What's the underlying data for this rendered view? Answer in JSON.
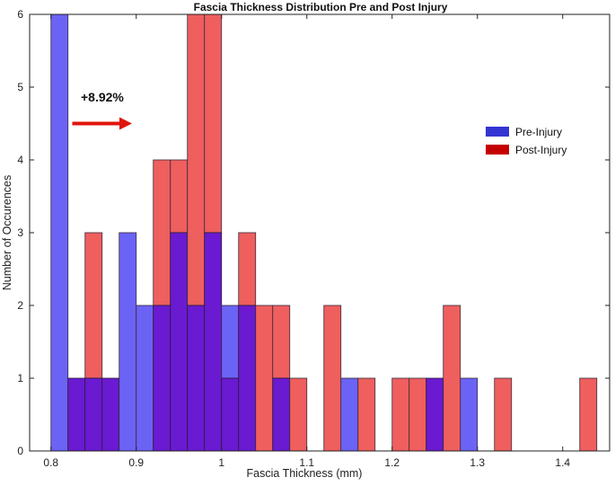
{
  "chart_data": {
    "type": "bar",
    "title": "Fascia Thickness Distribution Pre and Post Injury",
    "xlabel": "Fascia Thickness (mm)",
    "ylabel": "Number of Occurences",
    "xlim": [
      0.775,
      1.455
    ],
    "ylim": [
      0,
      6
    ],
    "xticks": [
      0.8,
      0.9,
      1,
      1.1,
      1.2,
      1.3,
      1.4
    ],
    "xtick_labels": [
      "0.8",
      "0.9",
      "1",
      "1.1",
      "1.2",
      "1.3",
      "1.4"
    ],
    "yticks": [
      0,
      1,
      2,
      3,
      4,
      5,
      6
    ],
    "bin_width": 0.02,
    "series": [
      {
        "name": "Pre-Injury",
        "color": "#6b63f5",
        "bins": [
          {
            "x0": 0.8,
            "count": 6
          },
          {
            "x0": 0.82,
            "count": 1
          },
          {
            "x0": 0.84,
            "count": 1
          },
          {
            "x0": 0.86,
            "count": 1
          },
          {
            "x0": 0.88,
            "count": 3
          },
          {
            "x0": 0.9,
            "count": 2
          },
          {
            "x0": 0.92,
            "count": 2
          },
          {
            "x0": 0.94,
            "count": 3
          },
          {
            "x0": 0.96,
            "count": 2
          },
          {
            "x0": 0.98,
            "count": 3
          },
          {
            "x0": 1.0,
            "count": 2
          },
          {
            "x0": 1.02,
            "count": 2
          },
          {
            "x0": 1.06,
            "count": 1
          },
          {
            "x0": 1.14,
            "count": 1
          },
          {
            "x0": 1.24,
            "count": 1
          },
          {
            "x0": 1.28,
            "count": 1
          }
        ]
      },
      {
        "name": "Post-Injury",
        "color": "#ee5f5e",
        "bins": [
          {
            "x0": 0.82,
            "count": 1
          },
          {
            "x0": 0.84,
            "count": 3
          },
          {
            "x0": 0.86,
            "count": 1
          },
          {
            "x0": 0.92,
            "count": 4
          },
          {
            "x0": 0.94,
            "count": 4
          },
          {
            "x0": 0.96,
            "count": 6
          },
          {
            "x0": 0.98,
            "count": 6
          },
          {
            "x0": 1.0,
            "count": 1
          },
          {
            "x0": 1.02,
            "count": 3
          },
          {
            "x0": 1.04,
            "count": 2
          },
          {
            "x0": 1.06,
            "count": 2
          },
          {
            "x0": 1.08,
            "count": 1
          },
          {
            "x0": 1.12,
            "count": 2
          },
          {
            "x0": 1.16,
            "count": 1
          },
          {
            "x0": 1.2,
            "count": 1
          },
          {
            "x0": 1.22,
            "count": 1
          },
          {
            "x0": 1.24,
            "count": 1
          },
          {
            "x0": 1.26,
            "count": 2
          },
          {
            "x0": 1.32,
            "count": 1
          },
          {
            "x0": 1.42,
            "count": 1
          }
        ]
      }
    ],
    "overlap_color": "#6a1ad0",
    "legend": {
      "placement": "right",
      "entries": [
        {
          "label": "Pre-Injury",
          "color": "#3434d2"
        },
        {
          "label": "Post-Injury",
          "color": "#c40000"
        }
      ]
    },
    "annotation": {
      "text": "+8.92%",
      "arrow_color": "#e0160e",
      "arrow_x_from": 0.825,
      "arrow_x_to": 0.895,
      "arrow_y": 4.5,
      "text_x": 0.835,
      "text_y": 4.8
    },
    "grid": false
  }
}
